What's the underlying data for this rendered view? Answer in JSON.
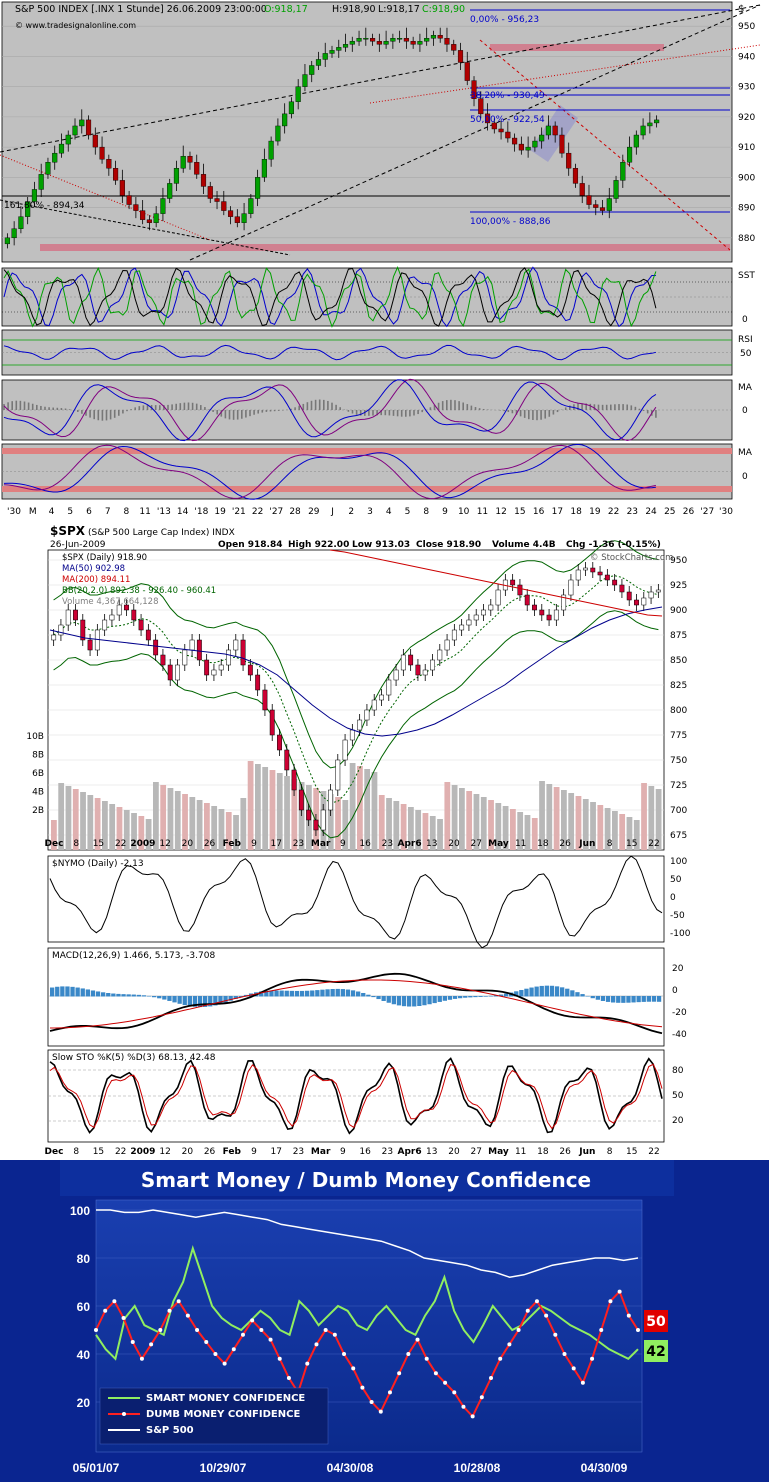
{
  "chart_data": [
    {
      "type": "line",
      "title": "S&P 500 INDEX [.INX  1 Stunde] 26.06.2009 23:00:00",
      "ohlc": {
        "open_label": "O:918,17",
        "high_label": "H:918,90",
        "low_label": "L:918,17",
        "close_label": "C:918,90"
      },
      "watermark": "© www.tradesignalonline.com",
      "currency_symbol": "$",
      "ylim": [
        872,
        958
      ],
      "y_ticks": [
        "950",
        "940",
        "930",
        "920",
        "910",
        "900",
        "890",
        "880"
      ],
      "fib_levels": [
        {
          "label": "0,00% - 956,23",
          "value": 956.23
        },
        {
          "label": "38,20% - 930,49",
          "value": 930.49
        },
        {
          "label": "50,00% - 922,54",
          "value": 922.54
        },
        {
          "label": "100,00% - 888,86",
          "value": 888.86
        },
        {
          "label": "161,80% - 894,34",
          "value": 894.34
        }
      ],
      "x_ticks": [
        "'30",
        "M",
        "4",
        "5",
        "6",
        "7",
        "8",
        "11",
        "'13",
        "14",
        "'18",
        "19",
        "'21",
        "22",
        "'27",
        "28",
        "29",
        "J",
        "2",
        "3",
        "4",
        "5",
        "8",
        "9",
        "10",
        "11",
        "12",
        "15",
        "16",
        "17",
        "18",
        "19",
        "22",
        "23",
        "24",
        "25",
        "26",
        "'27",
        "'30"
      ],
      "close": [
        880,
        883,
        887,
        892,
        896,
        901,
        905,
        908,
        911,
        914,
        917,
        919,
        914,
        910,
        906,
        903,
        899,
        894,
        891,
        889,
        886,
        885,
        888,
        893,
        898,
        903,
        907,
        905,
        901,
        897,
        893,
        892,
        889,
        887,
        885,
        888,
        893,
        900,
        906,
        912,
        917,
        921,
        925,
        930,
        934,
        937,
        939,
        941,
        942,
        943,
        944,
        945,
        946,
        946,
        945,
        944,
        945,
        946,
        946,
        945,
        944,
        945,
        946,
        947,
        946,
        944,
        942,
        938,
        932,
        926,
        921,
        918,
        916,
        915,
        913,
        911,
        909,
        910,
        912,
        914,
        917,
        914,
        908,
        903,
        898,
        894,
        891,
        890,
        889,
        893,
        899,
        905,
        910,
        914,
        917,
        918,
        919
      ],
      "panels": [
        {
          "name": "SST",
          "label": "SST",
          "ticks": [
            "0"
          ]
        },
        {
          "name": "RSI",
          "label": "RSI",
          "ticks": [
            "50"
          ]
        },
        {
          "name": "MA",
          "label": "MA",
          "ticks": [
            "0"
          ]
        },
        {
          "name": "MA2",
          "label": "MA",
          "ticks": [
            "0"
          ]
        }
      ]
    },
    {
      "type": "line",
      "symbol": "$SPX",
      "title": "(S&P 500 Large Cap Index)  INDX",
      "date": "26-Jun-2009",
      "quote": {
        "open": "Open 918.84",
        "high": "High 922.00",
        "low": "Low 913.03",
        "close": "Close 918.90",
        "volume": "Volume 4.4B",
        "chg": "Chg -1.36 (-0.15%)"
      },
      "credit": "© StockCharts.com",
      "legend": [
        {
          "label": "$SPX (Daily) 918.90",
          "color": "#000000"
        },
        {
          "label": "MA(50) 902.98",
          "color": "#00008b"
        },
        {
          "label": "MA(200) 894.11",
          "color": "#cc0000"
        },
        {
          "label": "BB(20,2.0) 892.38 - 926.40 - 960.41",
          "color": "#006400"
        },
        {
          "label": "Volume 4,367,664,128",
          "color": "#808080"
        }
      ],
      "ylim": [
        660,
        960
      ],
      "y_ticks": [
        "950",
        "925",
        "900",
        "875",
        "850",
        "825",
        "800",
        "775",
        "750",
        "725",
        "700",
        "675"
      ],
      "volume_ticks": [
        "10B",
        "8B",
        "6B",
        "4B",
        "2B"
      ],
      "x_ticks": [
        "Dec",
        "8",
        "15",
        "22",
        "2009",
        "12",
        "20",
        "26",
        "Feb",
        "9",
        "17",
        "23",
        "Mar",
        "9",
        "16",
        "23",
        "Apr6",
        "13",
        "20",
        "27",
        "May",
        "11",
        "18",
        "26",
        "Jun",
        "8",
        "15",
        "22"
      ],
      "close": [
        875,
        885,
        900,
        890,
        870,
        860,
        880,
        890,
        895,
        905,
        900,
        890,
        880,
        870,
        855,
        845,
        830,
        845,
        860,
        870,
        850,
        835,
        840,
        845,
        860,
        870,
        845,
        835,
        820,
        800,
        775,
        760,
        740,
        720,
        700,
        690,
        680,
        700,
        720,
        750,
        770,
        780,
        790,
        800,
        810,
        815,
        830,
        840,
        855,
        845,
        835,
        840,
        850,
        860,
        870,
        880,
        885,
        890,
        895,
        900,
        905,
        920,
        930,
        925,
        915,
        905,
        900,
        895,
        890,
        900,
        915,
        930,
        940,
        942,
        938,
        935,
        930,
        925,
        918,
        910,
        905,
        912,
        918,
        920
      ],
      "ma50": [
        880,
        876,
        872,
        870,
        868,
        866,
        864,
        862,
        860,
        858,
        856,
        852,
        845,
        835,
        820,
        805,
        792,
        782,
        776,
        774,
        776,
        780,
        786,
        795,
        805,
        815,
        825,
        838,
        850,
        862,
        872,
        882,
        890,
        896,
        900,
        903
      ],
      "ma200": [
        960,
        958,
        955,
        952,
        949,
        946,
        943,
        940,
        937,
        934,
        931,
        928,
        925,
        922,
        919,
        916,
        913,
        910,
        907,
        904,
        901,
        898,
        895,
        894
      ],
      "panels": [
        {
          "name": "NYMO",
          "label": "$NYMO (Daily) -2.13",
          "ticks": [
            "100",
            "50",
            "0",
            "-50",
            "-100"
          ]
        },
        {
          "name": "MACD",
          "label": "MACD(12,26,9) 1.466, 5.173, -3.708",
          "ticks": [
            "20",
            "0",
            "-20",
            "-40"
          ]
        },
        {
          "name": "STO",
          "label": "Slow STO %K(5) %D(3) 68.13, 42.48",
          "ticks": [
            "80",
            "50",
            "20"
          ]
        }
      ]
    },
    {
      "type": "line",
      "title": "Smart Money / Dumb Money Confidence",
      "ylim": [
        0,
        100
      ],
      "y_ticks": [
        "100",
        "80",
        "60",
        "40",
        "20"
      ],
      "x_ticks": [
        "05/01/07",
        "10/29/07",
        "04/30/08",
        "10/28/08",
        "04/30/09"
      ],
      "series": [
        {
          "name": "SMART MONEY CONFIDENCE",
          "color": "#90ee60",
          "last": "42",
          "values": [
            48,
            42,
            38,
            55,
            60,
            52,
            50,
            48,
            62,
            70,
            84,
            72,
            60,
            55,
            52,
            50,
            54,
            58,
            55,
            50,
            48,
            62,
            58,
            52,
            56,
            60,
            58,
            52,
            50,
            56,
            60,
            55,
            50,
            48,
            56,
            62,
            72,
            58,
            50,
            45,
            52,
            60,
            55,
            50,
            52,
            56,
            60,
            58,
            55,
            52,
            50,
            48,
            45,
            42,
            40,
            38,
            42
          ]
        },
        {
          "name": "DUMB MONEY CONFIDENCE",
          "color": "#ff2020",
          "last": "50",
          "values": [
            50,
            58,
            62,
            55,
            45,
            38,
            44,
            50,
            58,
            62,
            56,
            50,
            45,
            40,
            36,
            42,
            48,
            54,
            50,
            46,
            38,
            30,
            24,
            36,
            44,
            50,
            48,
            40,
            34,
            26,
            20,
            16,
            24,
            32,
            40,
            46,
            38,
            32,
            28,
            24,
            18,
            14,
            22,
            30,
            38,
            44,
            50,
            58,
            62,
            56,
            48,
            40,
            34,
            28,
            38,
            50,
            62,
            66,
            56,
            50
          ]
        },
        {
          "name": "S&P 500",
          "color": "#ffffff",
          "values": [
            100,
            100,
            99,
            99,
            100,
            99,
            98,
            97,
            98,
            99,
            98,
            97,
            96,
            94,
            93,
            92,
            91,
            90,
            89,
            88,
            87,
            85,
            83,
            80,
            79,
            78,
            77,
            75,
            74,
            72,
            73,
            75,
            77,
            78,
            79,
            80,
            80,
            79,
            80
          ]
        }
      ],
      "last_badges": [
        {
          "label": "50",
          "color": "#e00000"
        },
        {
          "label": "42",
          "color": "#90ee60"
        }
      ]
    }
  ]
}
